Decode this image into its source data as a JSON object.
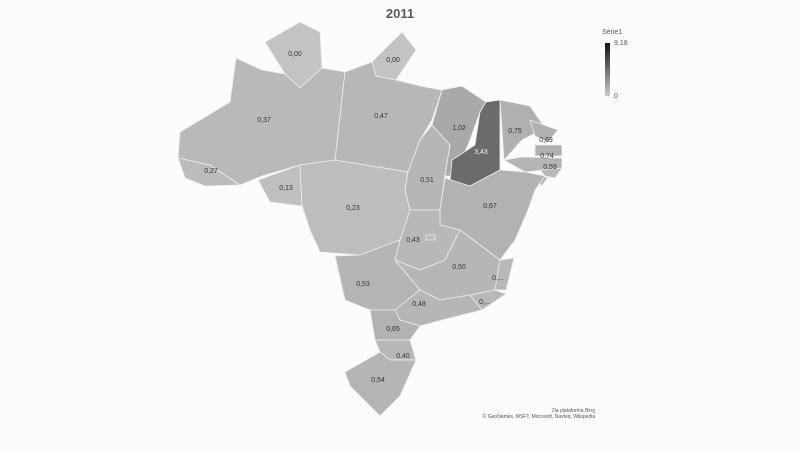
{
  "title": "2011",
  "legend": {
    "title": "Série1",
    "max": "9,18",
    "min": "0",
    "color_high": "#111111",
    "color_low": "#cccccc"
  },
  "attribution": {
    "line1": "Da plataforma Bing",
    "line2": "© GeoNames, MSFT, Microsoft, Navteq, Wikipedia"
  },
  "chart_data": {
    "type": "filled-map",
    "title": "2011",
    "series_name": "Série1",
    "range": [
      0,
      9.18
    ],
    "regions": [
      {
        "id": "RR",
        "label": "0,00",
        "value": 0.0
      },
      {
        "id": "AP",
        "label": "0,00",
        "value": 0.0
      },
      {
        "id": "AM",
        "label": "0,37",
        "value": 0.37
      },
      {
        "id": "PA",
        "label": "0,47",
        "value": 0.47
      },
      {
        "id": "AC",
        "label": "0,27",
        "value": 0.27
      },
      {
        "id": "RO",
        "label": "0,13",
        "value": 0.13
      },
      {
        "id": "MT",
        "label": "0,23",
        "value": 0.23
      },
      {
        "id": "TO",
        "label": "0,51",
        "value": 0.51
      },
      {
        "id": "MA",
        "label": "1,02",
        "value": 1.02
      },
      {
        "id": "PI",
        "label": "3,43",
        "value": 3.43
      },
      {
        "id": "CE",
        "label": "0,75",
        "value": 0.75
      },
      {
        "id": "RN",
        "label": "0,69",
        "value": 0.69
      },
      {
        "id": "PB",
        "label": "0,74",
        "value": 0.74
      },
      {
        "id": "PE",
        "label": "0,59",
        "value": 0.59
      },
      {
        "id": "AL",
        "label": "",
        "value": null
      },
      {
        "id": "SE",
        "label": "",
        "value": null
      },
      {
        "id": "BA",
        "label": "0,67",
        "value": 0.67
      },
      {
        "id": "GO",
        "label": "0,43",
        "value": 0.43
      },
      {
        "id": "DF",
        "label": "",
        "value": null
      },
      {
        "id": "MG",
        "label": "0,50",
        "value": 0.5
      },
      {
        "id": "ES",
        "label": "0,...",
        "value": null
      },
      {
        "id": "RJ",
        "label": "0,...",
        "value": null
      },
      {
        "id": "MS",
        "label": "0,53",
        "value": 0.53
      },
      {
        "id": "SP",
        "label": "0,48",
        "value": 0.48
      },
      {
        "id": "PR",
        "label": "0,65",
        "value": 0.65
      },
      {
        "id": "SC",
        "label": "0,40",
        "value": 0.4
      },
      {
        "id": "RS",
        "label": "0,54",
        "value": 0.54
      }
    ]
  }
}
